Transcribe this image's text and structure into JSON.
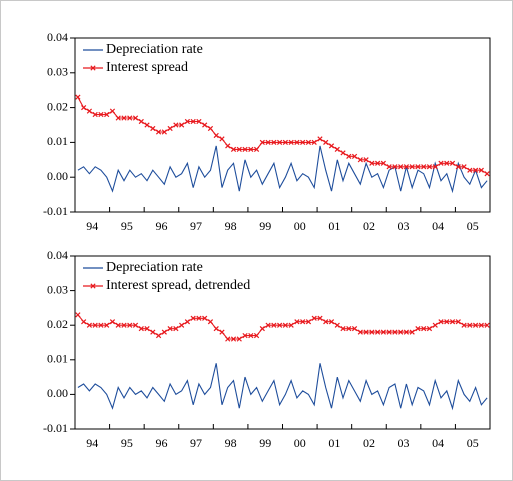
{
  "chart_data": [
    {
      "type": "line",
      "xlim": [
        1994,
        2006
      ],
      "xticks": [
        {
          "value": 1994,
          "label": "94"
        },
        {
          "value": 1995,
          "label": "95"
        },
        {
          "value": 1996,
          "label": "96"
        },
        {
          "value": 1997,
          "label": "97"
        },
        {
          "value": 1998,
          "label": "98"
        },
        {
          "value": 1999,
          "label": "99"
        },
        {
          "value": 2000,
          "label": "00"
        },
        {
          "value": 2001,
          "label": "01"
        },
        {
          "value": 2002,
          "label": "02"
        },
        {
          "value": 2003,
          "label": "03"
        },
        {
          "value": 2004,
          "label": "04"
        },
        {
          "value": 2005,
          "label": "05"
        }
      ],
      "ylim": [
        -0.01,
        0.04
      ],
      "yticks": [
        {
          "value": -0.01,
          "label": "-0.01"
        },
        {
          "value": 0,
          "label": "0.00"
        },
        {
          "value": 0.01,
          "label": "0.01"
        },
        {
          "value": 0.02,
          "label": "0.02"
        },
        {
          "value": 0.03,
          "label": "0.03"
        },
        {
          "value": 0.04,
          "label": "0.04"
        }
      ],
      "legend": "upper left",
      "series": [
        {
          "name": "Depreciation rate",
          "color": "#1f4e9c",
          "marker": "none",
          "values": [
            0.002,
            0.003,
            0.001,
            0.003,
            0.002,
            0.0,
            -0.004,
            0.002,
            -0.001,
            0.002,
            0.0,
            0.001,
            -0.001,
            0.002,
            0.0,
            -0.002,
            0.003,
            0.0,
            0.001,
            0.004,
            -0.003,
            0.003,
            0.0,
            0.002,
            0.009,
            -0.003,
            0.002,
            0.004,
            -0.004,
            0.005,
            0.0,
            0.002,
            -0.002,
            0.001,
            0.004,
            -0.003,
            0.0,
            0.004,
            -0.001,
            0.001,
            0.0,
            -0.003,
            0.009,
            0.002,
            -0.004,
            0.005,
            -0.001,
            0.004,
            0.001,
            -0.002,
            0.004,
            0.0,
            0.001,
            -0.003,
            0.002,
            0.003,
            -0.004,
            0.003,
            -0.003,
            0.002,
            0.001,
            -0.003,
            0.004,
            -0.001,
            0.001,
            -0.004,
            0.004,
            0.0,
            -0.002,
            0.002,
            -0.003,
            -0.001
          ]
        },
        {
          "name": "Interest spread",
          "color": "#e8191e",
          "marker": "x",
          "values": [
            0.023,
            0.02,
            0.019,
            0.018,
            0.018,
            0.018,
            0.019,
            0.017,
            0.017,
            0.017,
            0.017,
            0.016,
            0.015,
            0.014,
            0.013,
            0.013,
            0.014,
            0.015,
            0.015,
            0.016,
            0.016,
            0.016,
            0.015,
            0.014,
            0.012,
            0.011,
            0.009,
            0.008,
            0.008,
            0.008,
            0.008,
            0.008,
            0.01,
            0.01,
            0.01,
            0.01,
            0.01,
            0.01,
            0.01,
            0.01,
            0.01,
            0.01,
            0.011,
            0.01,
            0.009,
            0.008,
            0.007,
            0.006,
            0.006,
            0.005,
            0.005,
            0.004,
            0.004,
            0.004,
            0.003,
            0.003,
            0.003,
            0.003,
            0.003,
            0.003,
            0.003,
            0.003,
            0.003,
            0.004,
            0.004,
            0.004,
            0.003,
            0.003,
            0.002,
            0.002,
            0.002,
            0.001
          ]
        }
      ]
    },
    {
      "type": "line",
      "xlim": [
        1994,
        2006
      ],
      "xticks": [
        {
          "value": 1994,
          "label": "94"
        },
        {
          "value": 1995,
          "label": "95"
        },
        {
          "value": 1996,
          "label": "96"
        },
        {
          "value": 1997,
          "label": "97"
        },
        {
          "value": 1998,
          "label": "98"
        },
        {
          "value": 1999,
          "label": "99"
        },
        {
          "value": 2000,
          "label": "00"
        },
        {
          "value": 2001,
          "label": "01"
        },
        {
          "value": 2002,
          "label": "02"
        },
        {
          "value": 2003,
          "label": "03"
        },
        {
          "value": 2004,
          "label": "04"
        },
        {
          "value": 2005,
          "label": "05"
        }
      ],
      "ylim": [
        -0.01,
        0.04
      ],
      "yticks": [
        {
          "value": -0.01,
          "label": "-0.01"
        },
        {
          "value": 0,
          "label": "0.00"
        },
        {
          "value": 0.01,
          "label": "0.01"
        },
        {
          "value": 0.02,
          "label": "0.02"
        },
        {
          "value": 0.03,
          "label": "0.03"
        },
        {
          "value": 0.04,
          "label": "0.04"
        }
      ],
      "legend": "upper left",
      "series": [
        {
          "name": "Depreciation rate",
          "color": "#1f4e9c",
          "marker": "none",
          "values": [
            0.002,
            0.003,
            0.001,
            0.003,
            0.002,
            0.0,
            -0.004,
            0.002,
            -0.001,
            0.002,
            0.0,
            0.001,
            -0.001,
            0.002,
            0.0,
            -0.002,
            0.003,
            0.0,
            0.001,
            0.004,
            -0.003,
            0.003,
            0.0,
            0.002,
            0.009,
            -0.003,
            0.002,
            0.004,
            -0.004,
            0.005,
            0.0,
            0.002,
            -0.002,
            0.001,
            0.004,
            -0.003,
            0.0,
            0.004,
            -0.001,
            0.001,
            0.0,
            -0.003,
            0.009,
            0.002,
            -0.004,
            0.005,
            -0.001,
            0.004,
            0.001,
            -0.002,
            0.004,
            0.0,
            0.001,
            -0.003,
            0.002,
            0.003,
            -0.004,
            0.003,
            -0.003,
            0.002,
            0.001,
            -0.003,
            0.004,
            -0.001,
            0.001,
            -0.004,
            0.004,
            0.0,
            -0.002,
            0.002,
            -0.003,
            -0.001
          ]
        },
        {
          "name": "Interest spread, detrended",
          "color": "#e8191e",
          "marker": "x",
          "values": [
            0.023,
            0.021,
            0.02,
            0.02,
            0.02,
            0.02,
            0.021,
            0.02,
            0.02,
            0.02,
            0.02,
            0.019,
            0.019,
            0.018,
            0.017,
            0.018,
            0.019,
            0.019,
            0.02,
            0.021,
            0.022,
            0.022,
            0.022,
            0.021,
            0.019,
            0.018,
            0.016,
            0.016,
            0.016,
            0.017,
            0.017,
            0.017,
            0.019,
            0.02,
            0.02,
            0.02,
            0.02,
            0.02,
            0.021,
            0.021,
            0.021,
            0.022,
            0.022,
            0.021,
            0.021,
            0.02,
            0.019,
            0.019,
            0.019,
            0.018,
            0.018,
            0.018,
            0.018,
            0.018,
            0.018,
            0.018,
            0.018,
            0.018,
            0.018,
            0.019,
            0.019,
            0.019,
            0.02,
            0.021,
            0.021,
            0.021,
            0.021,
            0.02,
            0.02,
            0.02,
            0.02,
            0.02
          ]
        }
      ]
    }
  ]
}
